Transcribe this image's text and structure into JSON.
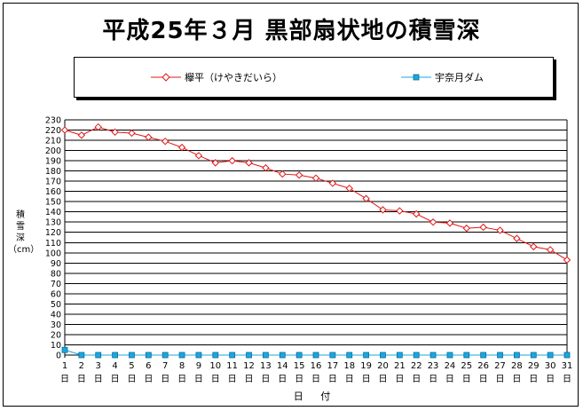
{
  "chart_data": {
    "type": "line",
    "title": "平成25年３月 黒部扇状地の積雪深",
    "xlabel": "日 付",
    "ylabel": "積\n雪\n深\n（cm）",
    "ylim": [
      0,
      230
    ],
    "ytick_step": 10,
    "grid": true,
    "legend_position": "top",
    "categories": [
      "1",
      "2",
      "3",
      "4",
      "5",
      "6",
      "7",
      "8",
      "9",
      "10",
      "11",
      "12",
      "13",
      "14",
      "15",
      "16",
      "17",
      "18",
      "19",
      "20",
      "21",
      "22",
      "23",
      "24",
      "25",
      "26",
      "27",
      "28",
      "29",
      "30",
      "31"
    ],
    "category_suffix": "日",
    "series": [
      {
        "name": "欅平（けやきだいら）",
        "color": "#e01818",
        "marker": "diamond",
        "values": [
          220,
          215,
          223,
          218,
          217,
          213,
          209,
          203,
          195,
          188,
          190,
          188,
          183,
          177,
          176,
          173,
          168,
          163,
          153,
          142,
          141,
          138,
          130,
          129,
          124,
          125,
          122,
          114,
          106,
          103,
          93
        ]
      },
      {
        "name": "宇奈月ダム",
        "color": "#1aa7e0",
        "marker": "square",
        "values": [
          5,
          0,
          0,
          0,
          0,
          0,
          0,
          0,
          0,
          0,
          0,
          0,
          0,
          0,
          0,
          0,
          0,
          0,
          0,
          0,
          0,
          0,
          0,
          0,
          0,
          0,
          0,
          0,
          0,
          0,
          0
        ]
      }
    ]
  }
}
